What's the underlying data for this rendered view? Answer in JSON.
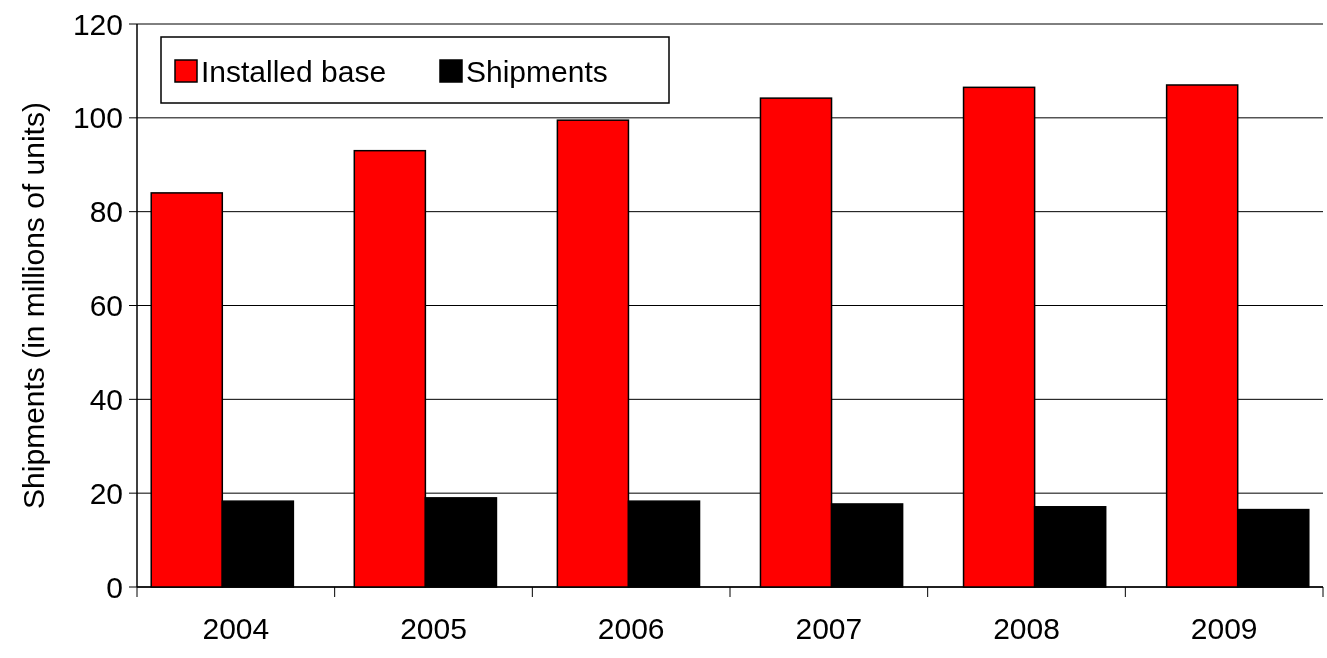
{
  "chart_data": {
    "type": "bar",
    "ylabel": "Shipments (in millions of units)",
    "categories": [
      "2004",
      "2005",
      "2006",
      "2007",
      "2008",
      "2009"
    ],
    "series": [
      {
        "name": "Installed base",
        "color": "#ff0000",
        "values": [
          84,
          93,
          99.5,
          104.2,
          106.5,
          107
        ]
      },
      {
        "name": "Shipments",
        "color": "#000000",
        "values": [
          18.3,
          19,
          18.3,
          17.7,
          17.1,
          16.5
        ]
      }
    ],
    "ylim": [
      0,
      120
    ],
    "yticks": [
      0,
      20,
      40,
      60,
      80,
      100,
      120
    ],
    "grid": "y",
    "legend": "top left"
  }
}
